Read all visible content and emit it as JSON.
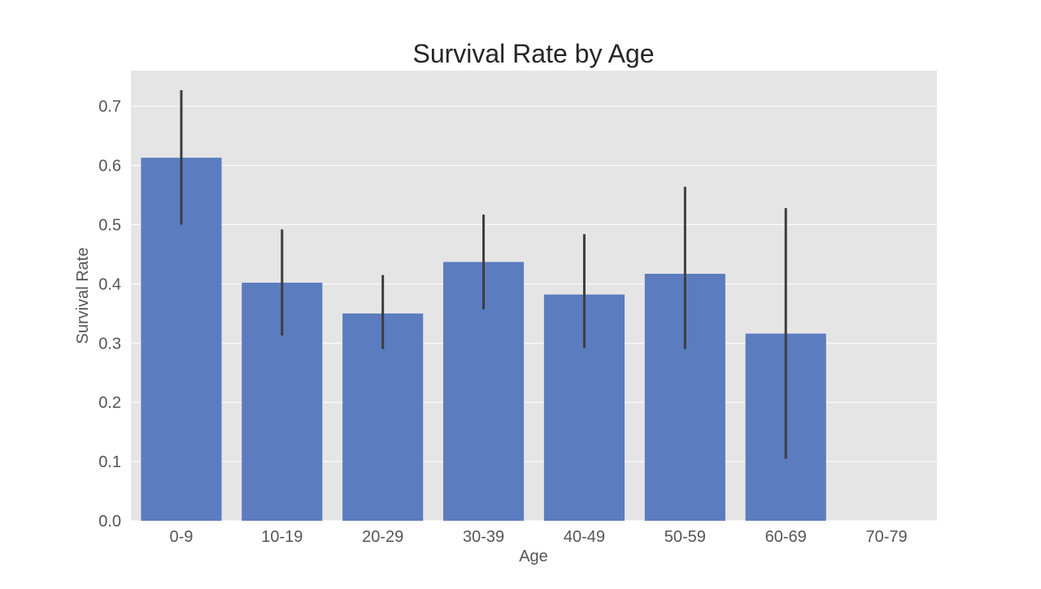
{
  "chart_data": {
    "type": "bar",
    "title": "Survival Rate by Age",
    "xlabel": "Age",
    "ylabel": "Survival Rate",
    "categories": [
      "0-9",
      "10-19",
      "20-29",
      "30-39",
      "40-49",
      "50-59",
      "60-69",
      "70-79"
    ],
    "values": [
      0.613,
      0.402,
      0.35,
      0.437,
      0.382,
      0.417,
      0.316,
      null
    ],
    "error_bars": [
      [
        0.5,
        0.727
      ],
      [
        0.313,
        0.492
      ],
      [
        0.29,
        0.415
      ],
      [
        0.357,
        0.517
      ],
      [
        0.292,
        0.484
      ],
      [
        0.29,
        0.564
      ],
      [
        0.105,
        0.528
      ],
      null
    ],
    "ylim": [
      0,
      0.76
    ],
    "yticks": [
      0.0,
      0.1,
      0.2,
      0.3,
      0.4,
      0.5,
      0.6,
      0.7
    ],
    "ytick_labels": [
      "0.0",
      "0.1",
      "0.2",
      "0.3",
      "0.4",
      "0.5",
      "0.6",
      "0.7"
    ],
    "grid": true,
    "colors": {
      "bar": "#5b7cbf",
      "error_bar": "#3d3d3d",
      "plot_background": "#e5e5e5",
      "grid": "#ffffff"
    }
  }
}
